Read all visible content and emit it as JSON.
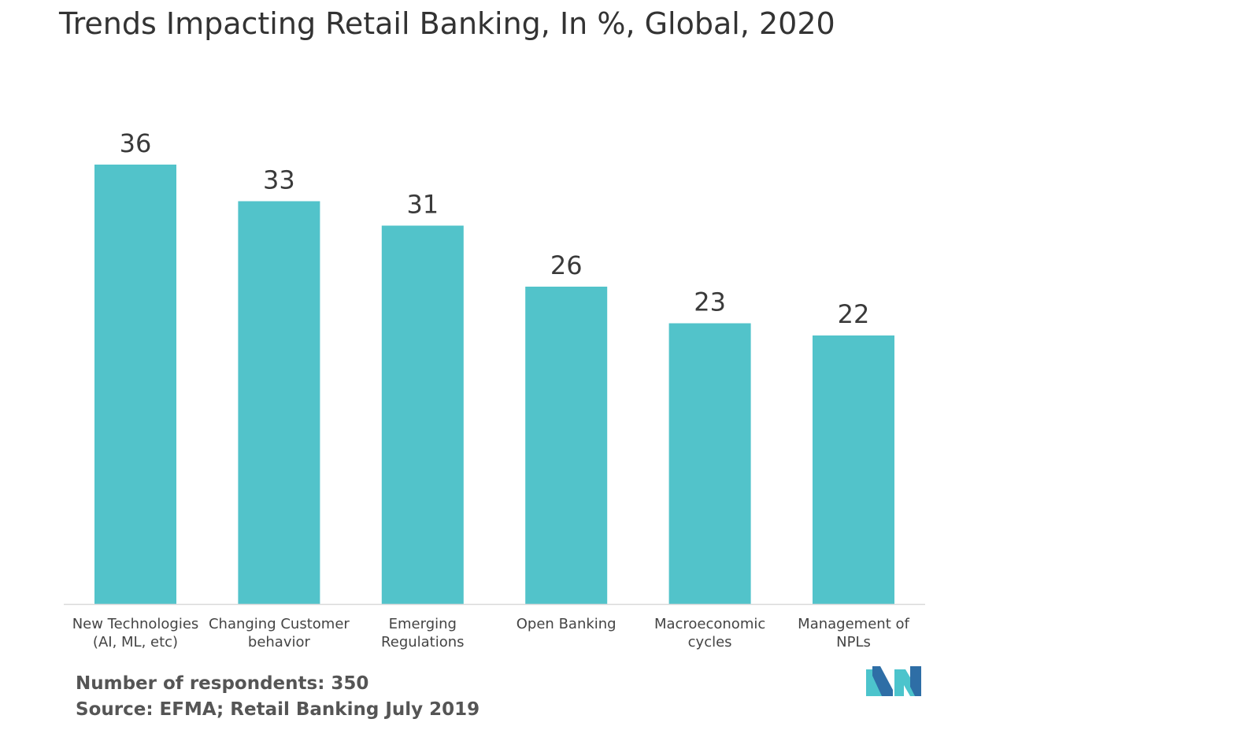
{
  "colors": {
    "bar": "#52c3ca",
    "axis": "#d9d9d9",
    "logo_dark": "#2e6ea6",
    "logo_light": "#4cc4cc"
  },
  "footer": {
    "respondents": "Number of respondents: 350",
    "source": "Source: EFMA; Retail Banking July 2019"
  },
  "logo": {
    "icon": "mordor-intelligence-logo-icon"
  },
  "chart_data": {
    "type": "bar",
    "title": "Trends Impacting Retail Banking, In %, Global, 2020",
    "xlabel": "",
    "ylabel": "",
    "categories": [
      [
        "New Technologies",
        "(AI, ML, etc)"
      ],
      [
        "Changing Customer",
        "behavior"
      ],
      [
        "Emerging",
        "Regulations"
      ],
      [
        "Open Banking"
      ],
      [
        "Macroeconomic",
        "cycles"
      ],
      [
        "Management of",
        "NPLs"
      ]
    ],
    "values": [
      36,
      33,
      31,
      26,
      23,
      22
    ],
    "data_labels": true,
    "ylim": [
      0,
      36
    ],
    "grid": false,
    "legend": "none"
  }
}
